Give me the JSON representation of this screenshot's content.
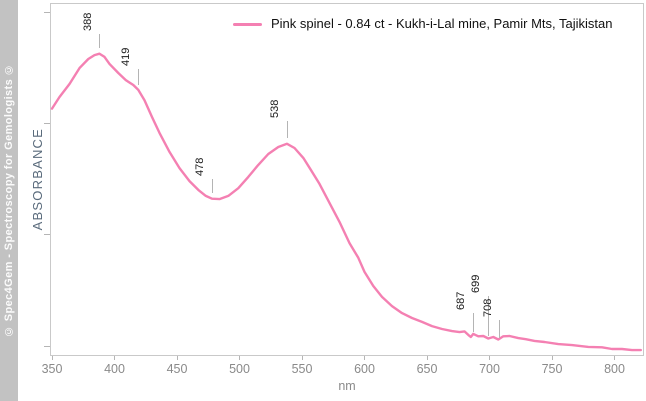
{
  "watermark": {
    "text": "© Spec4Gem - Spectroscopy for Gemologists ©"
  },
  "legend": {
    "label": "Pink spinel - 0.84 ct - Kukh-i-Lal mine, Pamir Mts, Tajikistan",
    "line_color": "#f480b2",
    "position": "top-right"
  },
  "chart_data": {
    "type": "line",
    "title": "",
    "xlabel": "nm",
    "ylabel": "ABSORBANCE",
    "xlim": [
      348,
      822
    ],
    "ylim": [
      0,
      1
    ],
    "y_units": "arbitrary absorbance (y axis has unlabeled ticks)",
    "grid": false,
    "legend_position": "top-right",
    "x_ticks": [
      350,
      400,
      450,
      500,
      550,
      600,
      650,
      700,
      750,
      800
    ],
    "annotations": [
      {
        "label": "388",
        "nm": 388
      },
      {
        "label": "419",
        "nm": 419
      },
      {
        "label": "478",
        "nm": 478
      },
      {
        "label": "538",
        "nm": 538
      },
      {
        "label": "687",
        "nm": 687
      },
      {
        "label": "699",
        "nm": 699
      },
      {
        "label": "708",
        "nm": 708
      }
    ],
    "series": [
      {
        "name": "Pink spinel - 0.84 ct - Kukh-i-Lal mine, Pamir Mts, Tajikistan",
        "color": "#f480b2",
        "points": [
          [
            350,
            0.7
          ],
          [
            356,
            0.733
          ],
          [
            364,
            0.77
          ],
          [
            372,
            0.815
          ],
          [
            379,
            0.841
          ],
          [
            384,
            0.852
          ],
          [
            388,
            0.856
          ],
          [
            392,
            0.847
          ],
          [
            396,
            0.827
          ],
          [
            403,
            0.801
          ],
          [
            409,
            0.781
          ],
          [
            415,
            0.767
          ],
          [
            419,
            0.753
          ],
          [
            424,
            0.724
          ],
          [
            430,
            0.676
          ],
          [
            436,
            0.631
          ],
          [
            444,
            0.577
          ],
          [
            452,
            0.531
          ],
          [
            460,
            0.494
          ],
          [
            467,
            0.469
          ],
          [
            473,
            0.452
          ],
          [
            478,
            0.444
          ],
          [
            484,
            0.443
          ],
          [
            491,
            0.452
          ],
          [
            499,
            0.474
          ],
          [
            507,
            0.506
          ],
          [
            515,
            0.54
          ],
          [
            523,
            0.571
          ],
          [
            531,
            0.591
          ],
          [
            538,
            0.6
          ],
          [
            544,
            0.588
          ],
          [
            551,
            0.56
          ],
          [
            557,
            0.526
          ],
          [
            564,
            0.486
          ],
          [
            572,
            0.432
          ],
          [
            580,
            0.378
          ],
          [
            588,
            0.318
          ],
          [
            595,
            0.276
          ],
          [
            600,
            0.236
          ],
          [
            607,
            0.196
          ],
          [
            614,
            0.165
          ],
          [
            622,
            0.139
          ],
          [
            630,
            0.119
          ],
          [
            638,
            0.105
          ],
          [
            646,
            0.094
          ],
          [
            654,
            0.082
          ],
          [
            662,
            0.074
          ],
          [
            670,
            0.068
          ],
          [
            676,
            0.065
          ],
          [
            680,
            0.067
          ],
          [
            683,
            0.057
          ],
          [
            685,
            0.051
          ],
          [
            687,
            0.06
          ],
          [
            691,
            0.053
          ],
          [
            695,
            0.054
          ],
          [
            699,
            0.047
          ],
          [
            703,
            0.051
          ],
          [
            707,
            0.044
          ],
          [
            711,
            0.053
          ],
          [
            716,
            0.054
          ],
          [
            723,
            0.048
          ],
          [
            729,
            0.045
          ],
          [
            736,
            0.04
          ],
          [
            744,
            0.037
          ],
          [
            755,
            0.031
          ],
          [
            766,
            0.028
          ],
          [
            779,
            0.023
          ],
          [
            790,
            0.022
          ],
          [
            798,
            0.017
          ],
          [
            806,
            0.017
          ],
          [
            814,
            0.014
          ],
          [
            821,
            0.014
          ]
        ]
      }
    ]
  }
}
